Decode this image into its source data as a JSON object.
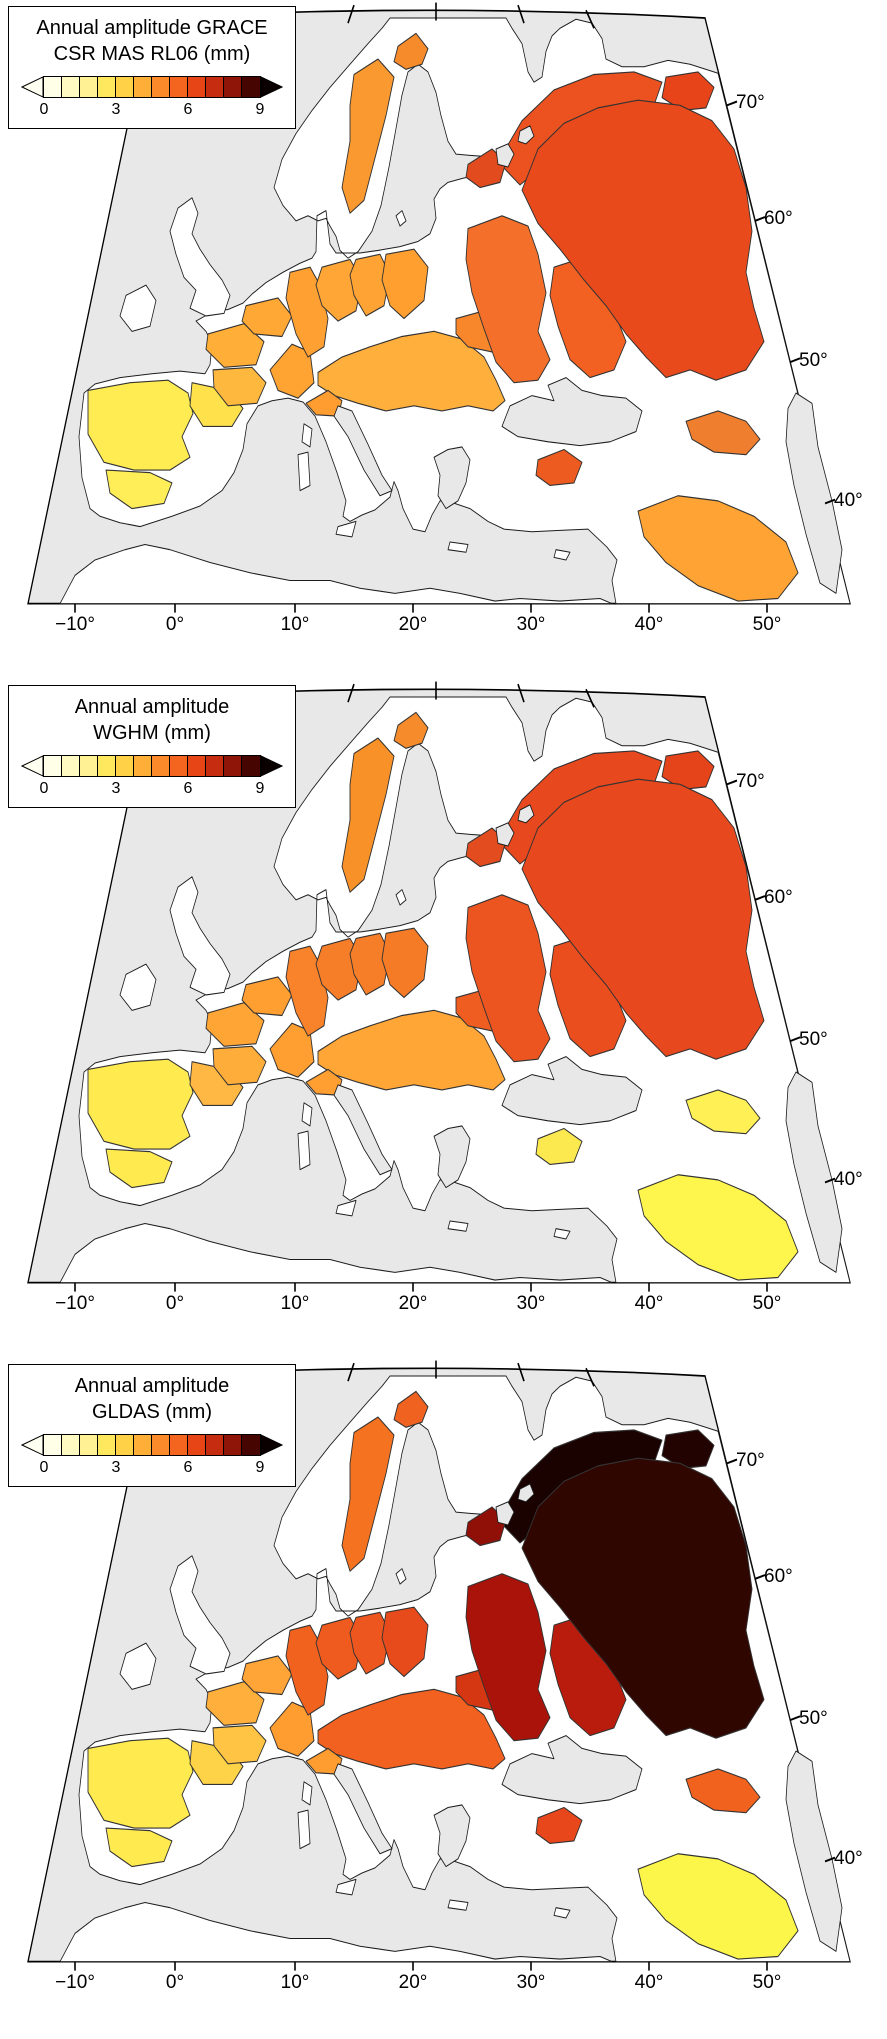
{
  "figure": {
    "kind": "choropleth-map-triptych"
  },
  "map": {
    "sea_color": "#e8e8e8",
    "land_color": "#ffffff"
  },
  "axes": {
    "lon_labels": [
      "−10°",
      "0°",
      "10°",
      "20°",
      "30°",
      "40°",
      "50°"
    ],
    "lat_labels": [
      "70°",
      "60°",
      "50°",
      "40°"
    ]
  },
  "colorbar": {
    "ticks": [
      "0",
      "3",
      "6",
      "9"
    ],
    "segments": [
      "#FFFFE8",
      "#FFF9C2",
      "#FFF194",
      "#FFE85E",
      "#FFD147",
      "#FFAE38",
      "#FB8A2B",
      "#F4661F",
      "#E84517",
      "#C52C10",
      "#8F1508",
      "#470502"
    ],
    "left_arrow_color": "#FFFFF2",
    "right_arrow_color": "#0A0000"
  },
  "panels": [
    {
      "id": "grace",
      "title_line1": "Annual amplitude GRACE",
      "title_line2": "CSR MAS RL06 (mm)",
      "basins": {
        "iberia_w": "#FFEC52",
        "guadalquivir": "#FFEE58",
        "ebro": "#FFE14C",
        "garonne": "#FFB83E",
        "loire": "#FFAE38",
        "seine": "#FFA835",
        "rhone": "#FFA433",
        "rhine": "#FFA032",
        "elbe": "#FFA636",
        "oder": "#FFA434",
        "vistula": "#FF9F30",
        "danube": "#FFAF3C",
        "po": "#FF9D30",
        "dniester": "#F8872C",
        "dnieper": "#F4702A",
        "don": "#F26122",
        "volga": "#E94A1C",
        "ndvina": "#EC5220",
        "pechora": "#E74419",
        "neva": "#E14B1E",
        "sweden": "#FA9930",
        "tornio": "#F68B2C",
        "kura": "#EF7F2F",
        "kizilirmak": "#EE5B20",
        "tigris": "#FFA434"
      }
    },
    {
      "id": "wghm",
      "title_line1": "Annual amplitude",
      "title_line2": "WGHM (mm)",
      "basins": {
        "iberia_w": "#FFEA50",
        "guadalquivir": "#FFEA50",
        "ebro": "#FFB843",
        "garonne": "#FFAD3A",
        "loire": "#FFA535",
        "seine": "#FF9F32",
        "rhone": "#FF9E31",
        "rhine": "#F8832B",
        "elbe": "#F77E28",
        "oder": "#F77E28",
        "vistula": "#F67B26",
        "danube": "#FFA637",
        "po": "#FF9E31",
        "dniester": "#EF5D21",
        "dnieper": "#ED5520",
        "don": "#EA4D1E",
        "volga": "#E8481D",
        "ndvina": "#E8481D",
        "pechora": "#E54319",
        "neva": "#E24C1E",
        "sweden": "#F89128",
        "tornio": "#F68B2C",
        "kura": "#FFF155",
        "kizilirmak": "#FBE94F",
        "tigris": "#FEF64C"
      }
    },
    {
      "id": "gldas",
      "title_line1": "Annual amplitude",
      "title_line2": "GLDAS (mm)",
      "basins": {
        "iberia_w": "#FFEA50",
        "guadalquivir": "#FFEA50",
        "ebro": "#FFD348",
        "garonne": "#FFC444",
        "loire": "#FFAF3B",
        "seine": "#FFA537",
        "rhone": "#FF9D30",
        "rhine": "#F2621F",
        "elbe": "#EF5B1E",
        "oder": "#ED561E",
        "vistula": "#E84B1B",
        "danube": "#F2611F",
        "po": "#FF9D30",
        "dniester": "#D63713",
        "dnieper": "#A91309",
        "don": "#B91C0D",
        "volga": "#300601",
        "ndvina": "#1A0200",
        "pechora": "#230301",
        "neva": "#900F07",
        "sweden": "#F47220",
        "tornio": "#EF621F",
        "kura": "#F2621F",
        "kizilirmak": "#E8461B",
        "tigris": "#FCF64A"
      }
    }
  ]
}
